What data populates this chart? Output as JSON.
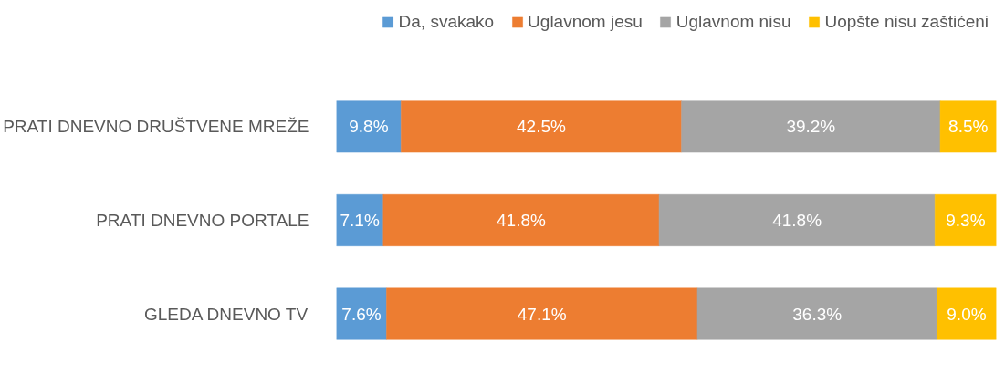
{
  "chart_data": {
    "type": "bar",
    "orientation": "horizontal",
    "stacked": true,
    "categories": [
      "PRATI DNEVNO DRUŠTVENE MREŽE",
      "PRATI DNEVNO PORTALE",
      "GLEDA DNEVNO TV"
    ],
    "series": [
      {
        "name": "Da, svakako",
        "color": "#5b9bd5",
        "values": [
          9.8,
          7.1,
          7.6
        ],
        "value_labels": [
          "9.8%",
          "7.1%",
          "7.6%"
        ]
      },
      {
        "name": "Uglavnom jesu",
        "color": "#ed7d31",
        "values": [
          42.5,
          41.8,
          47.1
        ],
        "value_labels": [
          "42.5%",
          "41.8%",
          "47.1%"
        ]
      },
      {
        "name": "Uglavnom nisu",
        "color": "#a5a5a5",
        "values": [
          39.2,
          41.8,
          36.3
        ],
        "value_labels": [
          "39.2%",
          "41.8%",
          "36.3%"
        ]
      },
      {
        "name": "Uopšte nisu zaštićeni",
        "color": "#ffc000",
        "values": [
          8.5,
          9.3,
          9.0
        ],
        "value_labels": [
          "8.5%",
          "9.3%",
          "9.0%"
        ]
      }
    ],
    "xlim": [
      0,
      100
    ],
    "tick_labels": "y",
    "legend": "top right",
    "grid": false
  }
}
